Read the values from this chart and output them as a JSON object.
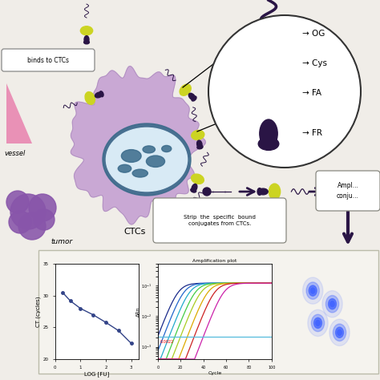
{
  "bg_color": "#f0ede8",
  "cell_color": "#c9a8d4",
  "cell_edge_color": "#b090c0",
  "nucleus_outer_color": "#3a6a8a",
  "nucleus_inner_color": "#d8eaf5",
  "nucleus_blob_color": "#3a6a8a",
  "yellow_color": "#ccd422",
  "dark_purple": "#2a1545",
  "pink_color": "#e87aaa",
  "dark_arrow_color": "#2a1545",
  "box_edge": "#888880",
  "title_bottom": "Amplification plot",
  "ct_xlabel": "LOG [FU]",
  "ct_ylabel": "CT (cycles)",
  "amp_xlabel": "Cycle",
  "amp_ylabel": "ΔRn",
  "threshold_label": "0.0022",
  "threshold_value": 0.0022,
  "ct_x": [
    0.3,
    0.6,
    1.0,
    1.5,
    2.0,
    2.5,
    3.0
  ],
  "ct_y": [
    30.5,
    29.2,
    28.0,
    27.0,
    25.8,
    24.5,
    22.5
  ],
  "ct_ylim": [
    20,
    35
  ],
  "ct_xlim": [
    0,
    3.3
  ],
  "amp_colors": [
    "#1a2a8a",
    "#2266cc",
    "#22aacc",
    "#44cc44",
    "#aacc22",
    "#ddaa00",
    "#cc2222",
    "#cc22aa"
  ],
  "amp_offsets": [
    18,
    23,
    28,
    33,
    38,
    44,
    50,
    58
  ],
  "vessel_text": "vessel",
  "ctcs_text": "CTCs",
  "binds_text": "binds to CTCs",
  "strip_text": "Strip  the  specific  bound\nconjugates from CTCs.",
  "ampl_text": "Ampl...\nconju...",
  "legend_labels": [
    "OG",
    "Cys",
    "FA",
    "FR"
  ],
  "bottom_panel_facecolor": "#f5f3ee",
  "bottom_panel_edge": "#bbbbaa"
}
